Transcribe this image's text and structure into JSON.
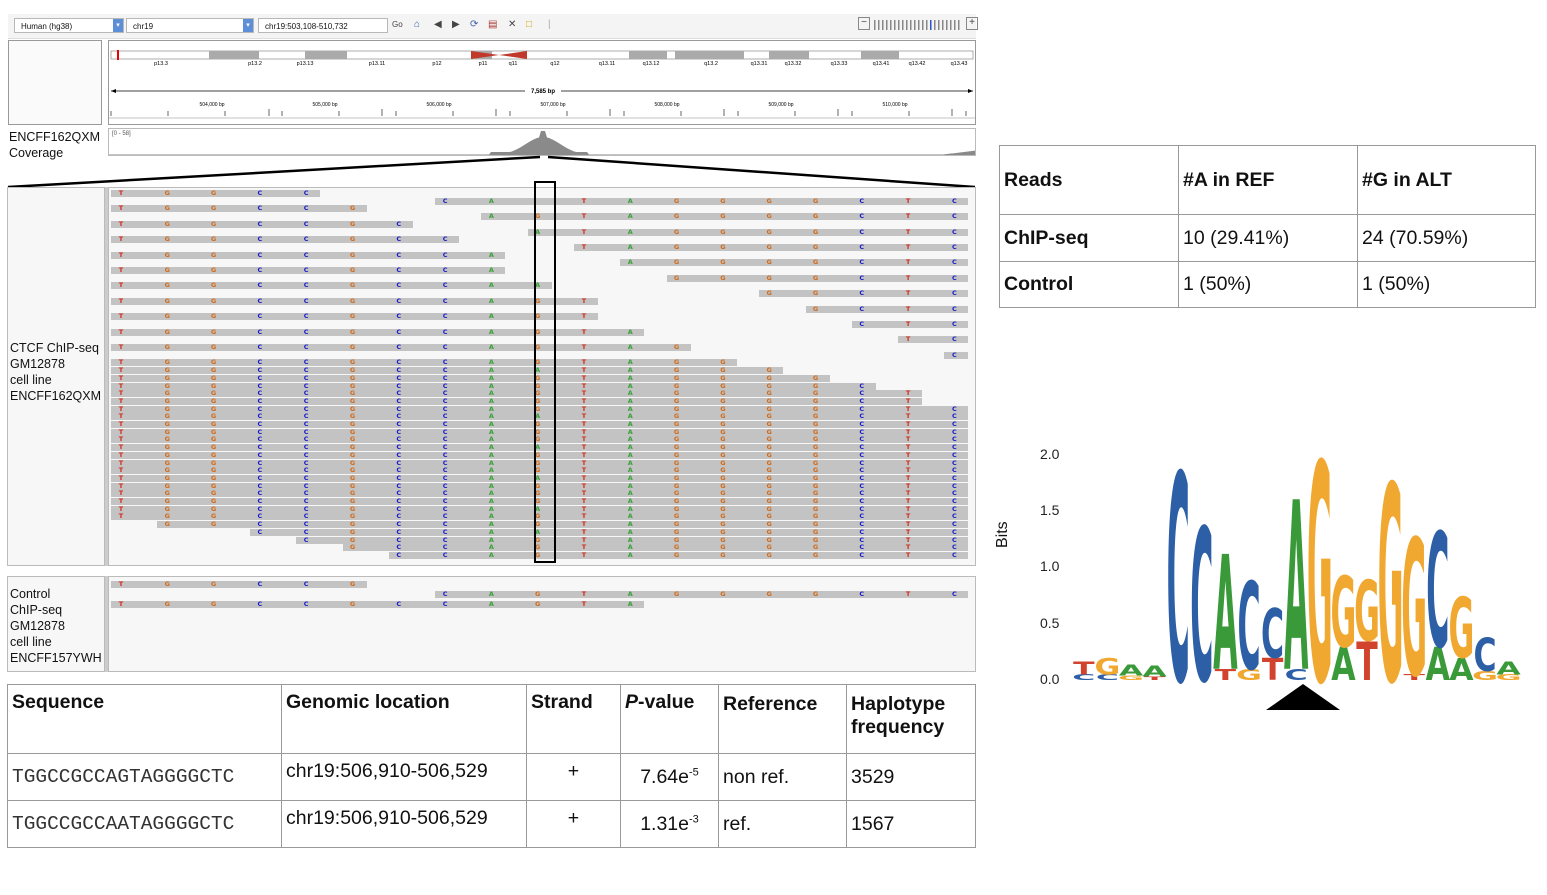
{
  "toolbar": {
    "genome": "Human (hg38)",
    "chromosome": "chr19",
    "locus": "chr19:503,108-510,732",
    "go_label": "Go"
  },
  "ideogram": {
    "bands": [
      "p13.3",
      "p13.2",
      "p13.13",
      "p13.11",
      "p12",
      "p11",
      "q11",
      "q12",
      "q13.11",
      "q13.12",
      "q13.2",
      "q13.31",
      "q13.32",
      "q13.33",
      "q13.41",
      "q13.42",
      "q13.43"
    ],
    "span_label": "7,585 bp",
    "ruler": [
      "504,000 bp",
      "505,000 bp",
      "506,000 bp",
      "507,000 bp",
      "508,000 bp",
      "509,000 bp",
      "510,000 bp"
    ]
  },
  "coverage": {
    "label_line1": "ENCFF162QXM",
    "label_line2": "Coverage",
    "range": "[0 - 58]"
  },
  "chip_track": {
    "label": [
      "CTCF ChIP-seq",
      "GM12878",
      "cell line",
      "ENCFF162QXM"
    ]
  },
  "control_track": {
    "label": [
      "Control",
      "ChIP-seq",
      "GM12878",
      "cell line",
      "ENCFF157YWH"
    ]
  },
  "reads": {
    "sequence": [
      "T",
      "G",
      "G",
      "C",
      "C",
      "G",
      "C",
      "C",
      "A",
      "G",
      "T",
      "A",
      "G",
      "G",
      "G",
      "G",
      "C",
      "T",
      "C"
    ],
    "chip_rows": [
      {
        "s": 0,
        "e": 4,
        "alt": null
      },
      {
        "s": 7,
        "e": 18,
        "alt": null
      },
      {
        "s": 0,
        "e": 5,
        "alt": null
      },
      {
        "s": 8,
        "e": 18,
        "alt": "G"
      },
      {
        "s": 0,
        "e": 6,
        "alt": null
      },
      {
        "s": 9,
        "e": 18,
        "alt": "A"
      },
      {
        "s": 0,
        "e": 7,
        "alt": null
      },
      {
        "s": 10,
        "e": 18,
        "alt": null
      },
      {
        "s": 0,
        "e": 8,
        "alt": null
      },
      {
        "s": 11,
        "e": 18,
        "alt": null
      },
      {
        "s": 0,
        "e": 8,
        "alt": null
      },
      {
        "s": 12,
        "e": 18,
        "alt": null
      },
      {
        "s": 0,
        "e": 9,
        "alt": "A"
      },
      {
        "s": 14,
        "e": 18,
        "alt": null
      },
      {
        "s": 0,
        "e": 10,
        "alt": "G"
      },
      {
        "s": 15,
        "e": 18,
        "alt": null
      },
      {
        "s": 0,
        "e": 10,
        "alt": "G"
      },
      {
        "s": 16,
        "e": 18,
        "alt": null
      },
      {
        "s": 0,
        "e": 11,
        "alt": "G"
      },
      {
        "s": 17,
        "e": 18,
        "alt": null
      },
      {
        "s": 0,
        "e": 12,
        "alt": "G"
      },
      {
        "s": 18,
        "e": 18,
        "alt": null
      },
      {
        "s": 0,
        "e": 13,
        "alt": "G"
      },
      {
        "s": 0,
        "e": 14,
        "alt": "A"
      },
      {
        "s": 0,
        "e": 15,
        "alt": "G"
      },
      {
        "s": 0,
        "e": 16,
        "alt": "G"
      },
      {
        "s": 0,
        "e": 17,
        "alt": "G"
      },
      {
        "s": 0,
        "e": 17,
        "alt": "G"
      },
      {
        "s": 0,
        "e": 18,
        "alt": "G"
      },
      {
        "s": 0,
        "e": 18,
        "alt": "A"
      },
      {
        "s": 0,
        "e": 18,
        "alt": "G"
      },
      {
        "s": 0,
        "e": 18,
        "alt": "G"
      },
      {
        "s": 0,
        "e": 18,
        "alt": "G"
      },
      {
        "s": 0,
        "e": 18,
        "alt": "A"
      },
      {
        "s": 0,
        "e": 18,
        "alt": "G"
      },
      {
        "s": 0,
        "e": 18,
        "alt": "G"
      },
      {
        "s": 0,
        "e": 18,
        "alt": "G"
      },
      {
        "s": 0,
        "e": 18,
        "alt": "A"
      },
      {
        "s": 0,
        "e": 18,
        "alt": "G"
      },
      {
        "s": 0,
        "e": 18,
        "alt": "G"
      },
      {
        "s": 0,
        "e": 18,
        "alt": "G"
      },
      {
        "s": 0,
        "e": 18,
        "alt": "A"
      },
      {
        "s": 0,
        "e": 18,
        "alt": "G"
      },
      {
        "s": 1,
        "e": 18,
        "alt": "G"
      },
      {
        "s": 3,
        "e": 18,
        "alt": "A"
      },
      {
        "s": 4,
        "e": 18,
        "alt": "G"
      },
      {
        "s": 5,
        "e": 18,
        "alt": "G"
      },
      {
        "s": 6,
        "e": 18,
        "alt": "G"
      }
    ],
    "control_rows": [
      {
        "s": 0,
        "e": 5,
        "alt": null
      },
      {
        "s": 7,
        "e": 18,
        "alt": "G"
      },
      {
        "s": 0,
        "e": 11,
        "alt": "G"
      }
    ]
  },
  "counts_table": {
    "headers": [
      "Reads",
      "#A in REF",
      "#G in ALT"
    ],
    "rows": [
      [
        "ChIP-seq",
        "10 (29.41%)",
        "24 (70.59%)"
      ],
      [
        "Control",
        "1 (50%)",
        "1 (50%)"
      ]
    ]
  },
  "motif_table": {
    "headers": [
      "Sequence",
      "Genomic location",
      "Strand",
      "P-value",
      "Reference",
      "Haplotype frequency"
    ],
    "rows": [
      {
        "seq": "TGGCCGCCAGTAGGGGCTC",
        "loc": "chr19:506,910-506,529",
        "strand": "+",
        "p_base": "7.64e",
        "p_exp": "-5",
        "ref": "non ref.",
        "freq": "3529"
      },
      {
        "seq": "TGGCCGCCAATAGGGGCTC",
        "loc": "chr19:506,910-506,529",
        "strand": "+",
        "p_base": "1.31e",
        "p_exp": "-3",
        "ref": "ref.",
        "freq": "1567"
      }
    ]
  },
  "logo": {
    "ylabel": "Bits",
    "yticks": [
      "0.0",
      "0.5",
      "1.0",
      "1.5",
      "2.0"
    ],
    "colors": {
      "A": "#3a9a3a",
      "C": "#2c5fa5",
      "G": "#f0a830",
      "T": "#d2432e"
    },
    "columns": [
      {
        "T": 0.12,
        "C": 0.05
      },
      {
        "G": 0.15,
        "C": 0.05
      },
      {
        "A": 0.1,
        "G": 0.04
      },
      {
        "A": 0.1,
        "T": 0.03
      },
      {
        "C": 1.9
      },
      {
        "C": 1.4
      },
      {
        "A": 1.05,
        "T": 0.1
      },
      {
        "C": 0.8,
        "G": 0.1
      },
      {
        "C": 0.45,
        "T": 0.2
      },
      {
        "A": 1.55,
        "C": 0.1
      },
      {
        "G": 2.0
      },
      {
        "G": 0.65,
        "A": 0.3
      },
      {
        "G": 0.55,
        "T": 0.35
      },
      {
        "G": 1.8
      },
      {
        "G": 1.25,
        "T": 0.05
      },
      {
        "C": 1.05,
        "A": 0.3
      },
      {
        "G": 0.55,
        "A": 0.2
      },
      {
        "C": 0.3,
        "G": 0.08
      },
      {
        "A": 0.12,
        "G": 0.05
      }
    ]
  }
}
